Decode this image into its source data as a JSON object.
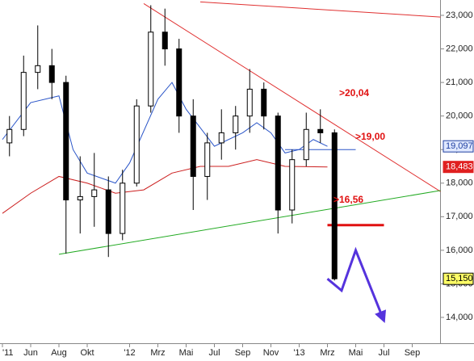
{
  "chart_data": {
    "type": "candlestick",
    "x": [
      "2011-04",
      "2011-05",
      "2011-06",
      "2011-07",
      "2011-08",
      "2011-09",
      "2011-10",
      "2011-11",
      "2011-12",
      "2012-01",
      "2012-02",
      "2012-03",
      "2012-04",
      "2012-05",
      "2012-06",
      "2012-07",
      "2012-08",
      "2012-09",
      "2012-10",
      "2012-11",
      "2012-12",
      "2013-01",
      "2013-02",
      "2013-03"
    ],
    "open": [
      19200,
      19600,
      21300,
      21500,
      21000,
      17500,
      17600,
      17800,
      16500,
      18000,
      20300,
      22500,
      22000,
      20000,
      18200,
      19200,
      19500,
      20000,
      20800,
      20000,
      17200,
      18700,
      19600,
      19500
    ],
    "high": [
      20000,
      21800,
      22700,
      22000,
      21200,
      18800,
      18900,
      18200,
      18400,
      20500,
      23300,
      23200,
      22300,
      20500,
      19500,
      20200,
      20300,
      21400,
      21000,
      20100,
      19000,
      20100,
      20200,
      19600
    ],
    "low": [
      18800,
      19400,
      20800,
      20500,
      15900,
      16500,
      16700,
      15800,
      16300,
      17900,
      20100,
      21500,
      19500,
      17200,
      17500,
      18700,
      19000,
      19500,
      19600,
      16500,
      16800,
      18500,
      19200,
      15100
    ],
    "close": [
      19600,
      21300,
      21500,
      21000,
      17500,
      17600,
      17800,
      16500,
      18000,
      20300,
      22500,
      22000,
      20000,
      18200,
      19200,
      19500,
      20000,
      20800,
      20000,
      17200,
      18700,
      19600,
      19500,
      15150
    ],
    "lines": [
      {
        "color": "#2a55c8",
        "x": [
          "2011-04",
          "2011-06",
          "2011-08",
          "2011-09",
          "2011-10",
          "2011-12",
          "2012-01",
          "2012-03",
          "2012-04",
          "2012-05",
          "2012-07",
          "2012-09",
          "2012-10",
          "2012-11",
          "2012-12",
          "2013-01",
          "2013-02",
          "2013-03"
        ],
        "values": [
          19300,
          20400,
          20600,
          19000,
          18300,
          18000,
          18600,
          20500,
          21000,
          20200,
          19100,
          19500,
          19800,
          19500,
          18900,
          19000,
          19300,
          19097
        ]
      },
      {
        "color": "#cc1f1f",
        "x": [
          "2011-04",
          "2011-06",
          "2011-08",
          "2011-10",
          "2011-12",
          "2012-02",
          "2012-04",
          "2012-06",
          "2012-08",
          "2012-10",
          "2012-12",
          "2013-03"
        ],
        "values": [
          17100,
          17700,
          18200,
          18000,
          17700,
          17800,
          18300,
          18500,
          18500,
          18700,
          18500,
          18483
        ]
      },
      {
        "color": "#e03030",
        "x": [
          "2012-02",
          "2013-11"
        ],
        "values": [
          23350,
          17750
        ]
      },
      {
        "color": "#e03030",
        "x": [
          "2012-06",
          "2013-11"
        ],
        "values": [
          23400,
          22950
        ]
      },
      {
        "color": "#22aa22",
        "x": [
          "2011-08",
          "2013-11"
        ],
        "values": [
          15880,
          17780
        ]
      },
      {
        "color": "#2a55c8",
        "x": [
          "2012-12",
          "2013-05"
        ],
        "values": [
          19000,
          19000
        ]
      },
      {
        "color": "#e01010",
        "x": [
          "2013-03",
          "2013-07"
        ],
        "values": [
          16750,
          16750
        ]
      },
      {
        "color": "#5533dd",
        "x": [
          "2013-03",
          "2013-04",
          "2013-05",
          "2013-07"
        ],
        "values": [
          15150,
          14800,
          16000,
          13900
        ]
      }
    ],
    "annotations": [
      ">20,04",
      ">19,00",
      ">16,56"
    ],
    "price_labels": [
      {
        "value": 19097,
        "label": "19,097",
        "color": "#1f3fa0",
        "bg": "#dfe8ff"
      },
      {
        "value": 18483,
        "label": "18,483",
        "color": "#ffffff",
        "bg": "#e02020"
      },
      {
        "value": 15150,
        "label": "15,150",
        "color": "#000000",
        "bg": "#ffff66"
      }
    ],
    "xlim": [
      "2011-04",
      "2013-11"
    ],
    "xticks": [
      {
        "value": "2011-04",
        "label": "'11"
      },
      {
        "value": "2011-06",
        "label": "Jun"
      },
      {
        "value": "2011-08",
        "label": "Aug"
      },
      {
        "value": "2011-10",
        "label": "Okt"
      },
      {
        "value": "2012-01",
        "label": "'12"
      },
      {
        "value": "2012-03",
        "label": "Mrz"
      },
      {
        "value": "2012-05",
        "label": "Mai"
      },
      {
        "value": "2012-07",
        "label": "Jul"
      },
      {
        "value": "2012-09",
        "label": "Sep"
      },
      {
        "value": "2012-11",
        "label": "Nov"
      },
      {
        "value": "2013-01",
        "label": "'13"
      },
      {
        "value": "2013-03",
        "label": "Mrz"
      },
      {
        "value": "2013-05",
        "label": "Mai"
      },
      {
        "value": "2013-07",
        "label": "Jul"
      },
      {
        "value": "2013-09",
        "label": "Sep"
      }
    ],
    "ylim": [
      13230,
      23457
    ],
    "yticks": [
      {
        "value": 14000,
        "label": "14,000"
      },
      {
        "value": 15000,
        "label": "15,000"
      },
      {
        "value": 16000,
        "label": "16,000"
      },
      {
        "value": 17000,
        "label": "17,000"
      },
      {
        "value": 18000,
        "label": "18,000"
      },
      {
        "value": 19000,
        "label": "19,000"
      },
      {
        "value": 20000,
        "label": "20,000"
      },
      {
        "value": 21000,
        "label": "21,000"
      },
      {
        "value": 22000,
        "label": "22,000"
      },
      {
        "value": 23000,
        "label": "23,000"
      }
    ]
  }
}
